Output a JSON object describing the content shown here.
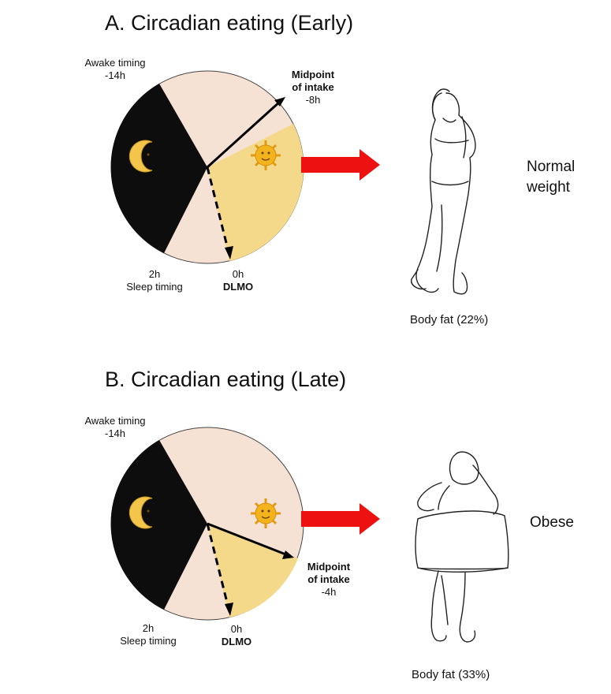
{
  "panel_a": {
    "title": "A. Circadian eating (Early)",
    "awake_label": "Awake timing",
    "awake_value": "-14h",
    "midpoint_label_1": "Midpoint",
    "midpoint_label_2": "of intake",
    "midpoint_value": "-8h",
    "sleep_value": "2h",
    "sleep_label": "Sleep timing",
    "dlmo_value": "0h",
    "dlmo_label": "DLMO",
    "outcome_line_1": "Normal",
    "outcome_line_2": "weight",
    "body_fat": "Body fat (22%)"
  },
  "panel_b": {
    "title": "B. Circadian eating (Late)",
    "awake_label": "Awake timing",
    "awake_value": "-14h",
    "midpoint_label_1": "Midpoint",
    "midpoint_label_2": "of intake",
    "midpoint_value": "-4h",
    "sleep_value": "2h",
    "sleep_label": "Sleep timing",
    "dlmo_value": "0h",
    "dlmo_label": "DLMO",
    "outcome": "Obese",
    "body_fat": "Body fat (33%)"
  },
  "colors": {
    "night": "#0d0d0d",
    "awake": "#f6e1d5",
    "eating": "#f4d98a",
    "arrow": "#ee1111",
    "moon": "#f3c64b",
    "sun": "#f2b31c"
  },
  "icons": [
    "moon-icon",
    "sun-icon",
    "right-arrow-icon",
    "slim-woman-figure",
    "obese-woman-figure"
  ]
}
